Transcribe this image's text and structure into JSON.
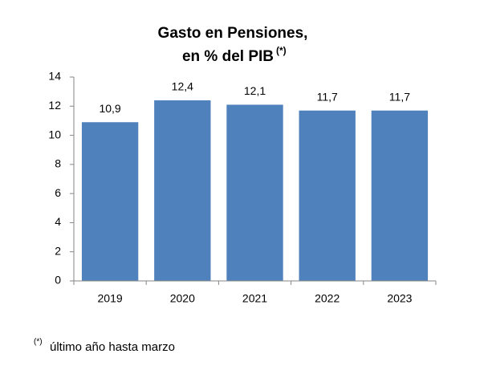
{
  "chart_data": {
    "type": "bar",
    "title": [
      "Gasto en Pensiones,",
      "en % del PIB"
    ],
    "title_marker": "(*)",
    "categories": [
      "2019",
      "2020",
      "2021",
      "2022",
      "2023"
    ],
    "values": [
      10.9,
      12.4,
      12.1,
      11.7,
      11.7
    ],
    "value_labels": [
      "10,9",
      "12,4",
      "12,1",
      "11,7",
      "11,7"
    ],
    "color": "#4f81bd",
    "ylim": [
      0,
      14
    ],
    "yticks": [
      0,
      2,
      4,
      6,
      8,
      10,
      12,
      14
    ],
    "grid": false,
    "footnote_marker": "(*)",
    "footnote": "último año hasta marzo"
  }
}
